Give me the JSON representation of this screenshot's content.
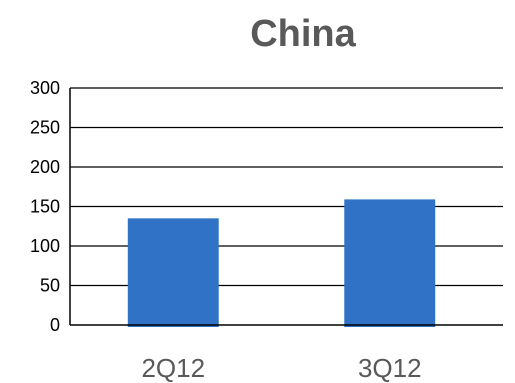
{
  "chart_data": {
    "type": "bar",
    "title": "China",
    "xlabel": "",
    "ylabel": "",
    "categories": [
      "2Q12",
      "3Q12"
    ],
    "values": [
      135,
      159
    ],
    "ylim": [
      0,
      300
    ],
    "yticks": [
      0,
      50,
      100,
      150,
      200,
      250,
      300
    ],
    "grid": true,
    "legend": "none",
    "colors": {
      "bar": "#3072C6",
      "grid": "#000000",
      "title": "#595959",
      "xtick": "#595959",
      "ytick": "#000000"
    }
  }
}
